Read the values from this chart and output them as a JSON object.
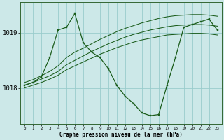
{
  "xlabel": "Graphe pression niveau de la mer (hPa)",
  "background_color": "#cce8e8",
  "grid_color": "#99cccc",
  "line_color": "#1a5c1a",
  "hours": [
    0,
    1,
    2,
    3,
    4,
    5,
    6,
    7,
    8,
    9,
    10,
    11,
    12,
    13,
    14,
    15,
    16,
    17,
    18,
    19,
    20,
    21,
    22,
    23
  ],
  "band_top": [
    1018.1,
    1018.15,
    1018.22,
    1018.3,
    1018.4,
    1018.55,
    1018.65,
    1018.72,
    1018.8,
    1018.88,
    1018.95,
    1019.02,
    1019.08,
    1019.13,
    1019.18,
    1019.22,
    1019.26,
    1019.29,
    1019.31,
    1019.32,
    1019.33,
    1019.33,
    1019.32,
    1019.3
  ],
  "band_mid": [
    1018.05,
    1018.1,
    1018.16,
    1018.22,
    1018.3,
    1018.42,
    1018.5,
    1018.58,
    1018.66,
    1018.73,
    1018.8,
    1018.86,
    1018.92,
    1018.97,
    1019.01,
    1019.05,
    1019.08,
    1019.11,
    1019.13,
    1019.14,
    1019.15,
    1019.15,
    1019.14,
    1019.12
  ],
  "band_bot": [
    1018.0,
    1018.05,
    1018.1,
    1018.16,
    1018.23,
    1018.33,
    1018.4,
    1018.47,
    1018.54,
    1018.61,
    1018.67,
    1018.73,
    1018.78,
    1018.83,
    1018.87,
    1018.9,
    1018.93,
    1018.96,
    1018.97,
    1018.98,
    1018.99,
    1018.99,
    1018.98,
    1018.96
  ],
  "main_line": [
    1018.05,
    1018.1,
    1018.2,
    1018.55,
    1019.05,
    1019.1,
    1019.35,
    1018.82,
    1018.65,
    1018.55,
    1018.35,
    1018.05,
    1017.85,
    1017.72,
    1017.55,
    1017.5,
    1017.52,
    1018.05,
    1018.55,
    1019.1,
    1019.15,
    1019.2,
    1019.25,
    1019.05
  ],
  "ylim": [
    1017.35,
    1019.55
  ],
  "ytick_positions": [
    1018.0,
    1019.0
  ],
  "ytick_labels": [
    "1018",
    "1019"
  ],
  "figsize": [
    3.2,
    2.0
  ],
  "dpi": 100
}
